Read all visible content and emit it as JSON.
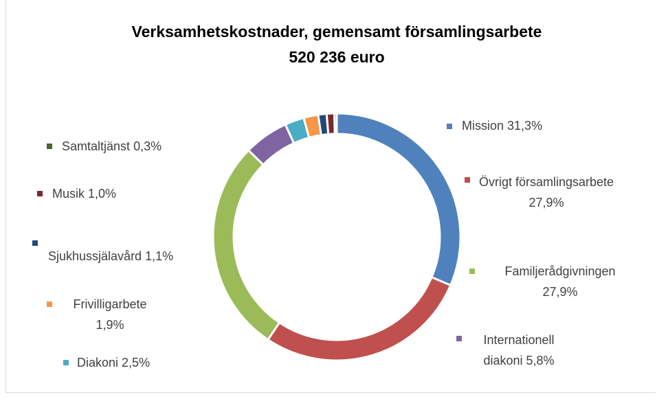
{
  "chart_data": {
    "type": "donut",
    "title": "Verksamhetskostnader, gemensamt församlingsarbete",
    "subtitle": "520 236 euro",
    "categories": [
      "Mission",
      "Övrigt församlingsarbete",
      "Familjerådgivningen",
      "Internationell diakoni",
      "Diakoni",
      "Frivilligarbete",
      "Sjukhussjälavård",
      "Musik",
      "Samtaltjänst"
    ],
    "values": [
      31.3,
      27.9,
      27.9,
      5.8,
      2.5,
      1.9,
      1.1,
      1.0,
      0.3
    ],
    "value_labels": [
      "31,3%",
      "27,9%",
      "27,9%",
      "5,8%",
      "2,5%",
      "1,9%",
      "1,1%",
      "1,0%",
      "0,3%"
    ],
    "colors": [
      "#4f81bd",
      "#c0504d",
      "#9bbb59",
      "#8064a2",
      "#4bacc6",
      "#f79646",
      "#1f497d",
      "#772c2a",
      "#4f6228"
    ]
  }
}
